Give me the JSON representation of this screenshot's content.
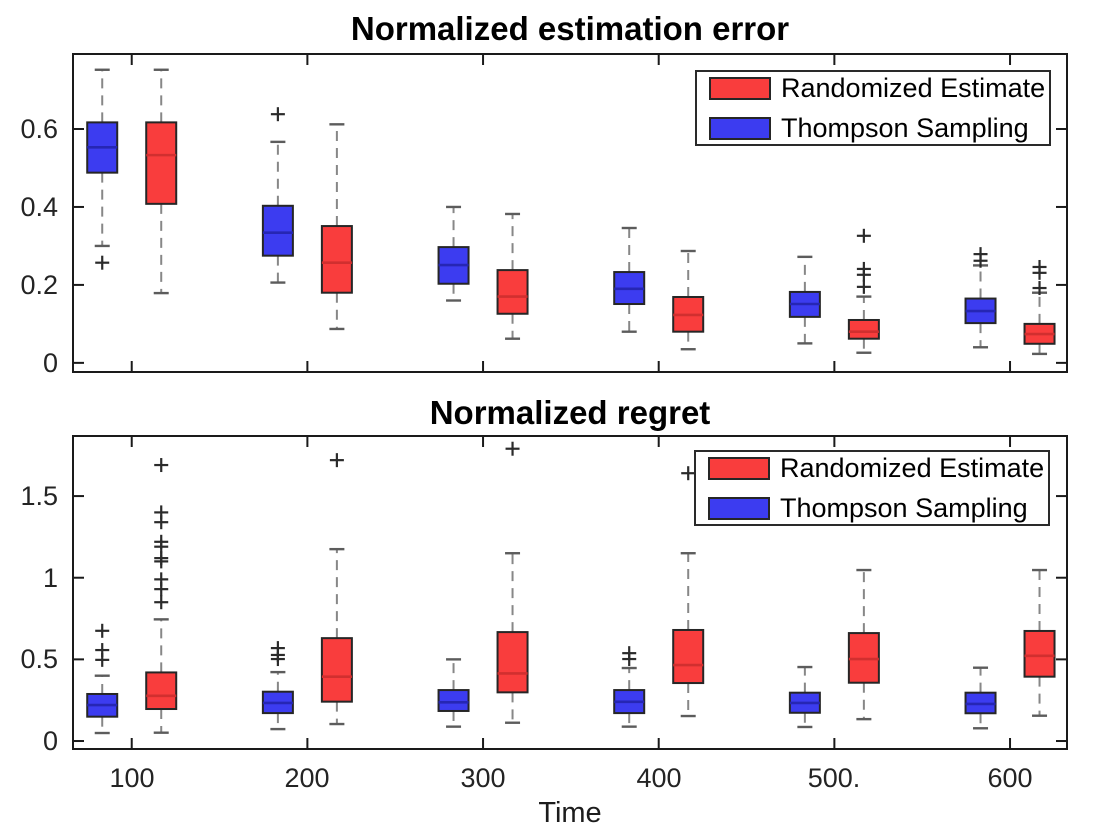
{
  "figure": {
    "title_top": "Normalized estimation error",
    "title_bottom": "Normalized regret",
    "xlabel": "Time",
    "background": "#ffffff"
  },
  "legend": {
    "items": [
      {
        "label": "Randomized Estimate",
        "color": "#f93d3d"
      },
      {
        "label": "Thompson Sampling",
        "color": "#3c3cf0"
      }
    ]
  },
  "colors": {
    "axis": "#1a1a1a",
    "box_edge": "#262626",
    "whisker": "#878787",
    "whisker_cap": "#5c5c5c",
    "outlier": "#2b2b2b"
  },
  "chart_data": [
    {
      "type": "boxplot",
      "title": "Normalized estimation error",
      "xlabel": "",
      "ylabel": "",
      "xlim": [
        66,
        633
      ],
      "ylim": [
        -0.026,
        0.795
      ],
      "xticks": [
        100,
        200,
        300,
        400,
        500,
        600
      ],
      "xtick_labels": [
        "",
        "",
        "",
        "",
        "",
        ""
      ],
      "yticks": [
        0,
        0.2,
        0.4,
        0.6
      ],
      "ytick_labels": [
        "0",
        "0.2",
        "0.4",
        "0.6"
      ],
      "grid": false,
      "legend_position": "northeast",
      "series": [
        {
          "name": "Thompson Sampling",
          "color": "#3c3cf0",
          "median_color": "#2626b4",
          "boxes": [
            {
              "x": 100,
              "whislo": 0.3,
              "q1": 0.488,
              "med": 0.553,
              "q3": 0.617,
              "whishi": 0.752,
              "outliers": [
                0.257
              ]
            },
            {
              "x": 200,
              "whislo": 0.206,
              "q1": 0.275,
              "med": 0.334,
              "q3": 0.403,
              "whishi": 0.567,
              "outliers": [
                0.638
              ]
            },
            {
              "x": 300,
              "whislo": 0.16,
              "q1": 0.203,
              "med": 0.251,
              "q3": 0.297,
              "whishi": 0.4,
              "outliers": []
            },
            {
              "x": 400,
              "whislo": 0.08,
              "q1": 0.151,
              "med": 0.19,
              "q3": 0.233,
              "whishi": 0.346,
              "outliers": []
            },
            {
              "x": 500,
              "whislo": 0.05,
              "q1": 0.118,
              "med": 0.151,
              "q3": 0.182,
              "whishi": 0.272,
              "outliers": []
            },
            {
              "x": 600,
              "whislo": 0.04,
              "q1": 0.102,
              "med": 0.133,
              "q3": 0.165,
              "whishi": 0.25,
              "outliers": [
                0.279,
                0.262
              ]
            }
          ]
        },
        {
          "name": "Randomized Estimate",
          "color": "#f93d3d",
          "median_color": "#d12f2f",
          "boxes": [
            {
              "x": 100,
              "whislo": 0.179,
              "q1": 0.408,
              "med": 0.533,
              "q3": 0.617,
              "whishi": 0.752,
              "outliers": []
            },
            {
              "x": 200,
              "whislo": 0.087,
              "q1": 0.18,
              "med": 0.257,
              "q3": 0.351,
              "whishi": 0.612,
              "outliers": []
            },
            {
              "x": 300,
              "whislo": 0.062,
              "q1": 0.126,
              "med": 0.17,
              "q3": 0.238,
              "whishi": 0.382,
              "outliers": []
            },
            {
              "x": 400,
              "whislo": 0.035,
              "q1": 0.08,
              "med": 0.123,
              "q3": 0.169,
              "whishi": 0.287,
              "outliers": []
            },
            {
              "x": 500,
              "whislo": 0.026,
              "q1": 0.062,
              "med": 0.08,
              "q3": 0.11,
              "whishi": 0.17,
              "outliers": [
                0.326,
                0.241,
                0.226,
                0.195
              ]
            },
            {
              "x": 600,
              "whislo": 0.023,
              "q1": 0.049,
              "med": 0.074,
              "q3": 0.1,
              "whishi": 0.18,
              "outliers": [
                0.246,
                0.231,
                0.192
              ]
            }
          ]
        }
      ]
    },
    {
      "type": "boxplot",
      "title": "Normalized regret",
      "xlabel": "Time",
      "ylabel": "",
      "xlim": [
        66,
        633
      ],
      "ylim": [
        -0.055,
        1.874
      ],
      "xticks": [
        100,
        200,
        300,
        400,
        500,
        600
      ],
      "xtick_labels": [
        "100",
        "200",
        "300",
        "400",
        "500.",
        "600"
      ],
      "yticks": [
        0,
        0.5,
        1,
        1.5
      ],
      "ytick_labels": [
        "0",
        "0.5",
        "1",
        "1.5"
      ],
      "grid": false,
      "legend_position": "northeast",
      "series": [
        {
          "name": "Thompson Sampling",
          "color": "#3c3cf0",
          "median_color": "#2626b4",
          "boxes": [
            {
              "x": 100,
              "whislo": 0.049,
              "q1": 0.149,
              "med": 0.22,
              "q3": 0.288,
              "whishi": 0.4,
              "outliers": [
                0.675,
                0.557,
                0.497
              ]
            },
            {
              "x": 200,
              "whislo": 0.073,
              "q1": 0.171,
              "med": 0.233,
              "q3": 0.302,
              "whishi": 0.422,
              "outliers": [
                0.569,
                0.527,
                0.502
              ]
            },
            {
              "x": 300,
              "whislo": 0.088,
              "q1": 0.184,
              "med": 0.237,
              "q3": 0.312,
              "whishi": 0.5,
              "outliers": []
            },
            {
              "x": 400,
              "whislo": 0.088,
              "q1": 0.171,
              "med": 0.24,
              "q3": 0.312,
              "whishi": 0.447,
              "outliers": [
                0.538,
                0.502
              ]
            },
            {
              "x": 500,
              "whislo": 0.086,
              "q1": 0.173,
              "med": 0.233,
              "q3": 0.296,
              "whishi": 0.453,
              "outliers": []
            },
            {
              "x": 600,
              "whislo": 0.078,
              "q1": 0.17,
              "med": 0.227,
              "q3": 0.296,
              "whishi": 0.449,
              "outliers": []
            }
          ]
        },
        {
          "name": "Randomized Estimate",
          "color": "#f93d3d",
          "median_color": "#d12f2f",
          "boxes": [
            {
              "x": 100,
              "whislo": 0.051,
              "q1": 0.196,
              "med": 0.277,
              "q3": 0.42,
              "whishi": 0.745,
              "outliers": [
                0.85,
                0.93,
                0.99,
                1.1,
                1.12,
                1.19,
                1.22,
                1.34,
                1.4,
                1.69
              ]
            },
            {
              "x": 200,
              "whislo": 0.104,
              "q1": 0.241,
              "med": 0.394,
              "q3": 0.63,
              "whishi": 1.175,
              "outliers": [
                1.72
              ]
            },
            {
              "x": 300,
              "whislo": 0.112,
              "q1": 0.298,
              "med": 0.414,
              "q3": 0.667,
              "whishi": 1.15,
              "outliers": [
                1.79
              ]
            },
            {
              "x": 400,
              "whislo": 0.153,
              "q1": 0.355,
              "med": 0.465,
              "q3": 0.68,
              "whishi": 1.15,
              "outliers": [
                1.64
              ]
            },
            {
              "x": 500,
              "whislo": 0.134,
              "q1": 0.357,
              "med": 0.502,
              "q3": 0.661,
              "whishi": 1.047,
              "outliers": []
            },
            {
              "x": 600,
              "whislo": 0.155,
              "q1": 0.394,
              "med": 0.522,
              "q3": 0.674,
              "whishi": 1.047,
              "outliers": []
            }
          ]
        }
      ]
    }
  ]
}
